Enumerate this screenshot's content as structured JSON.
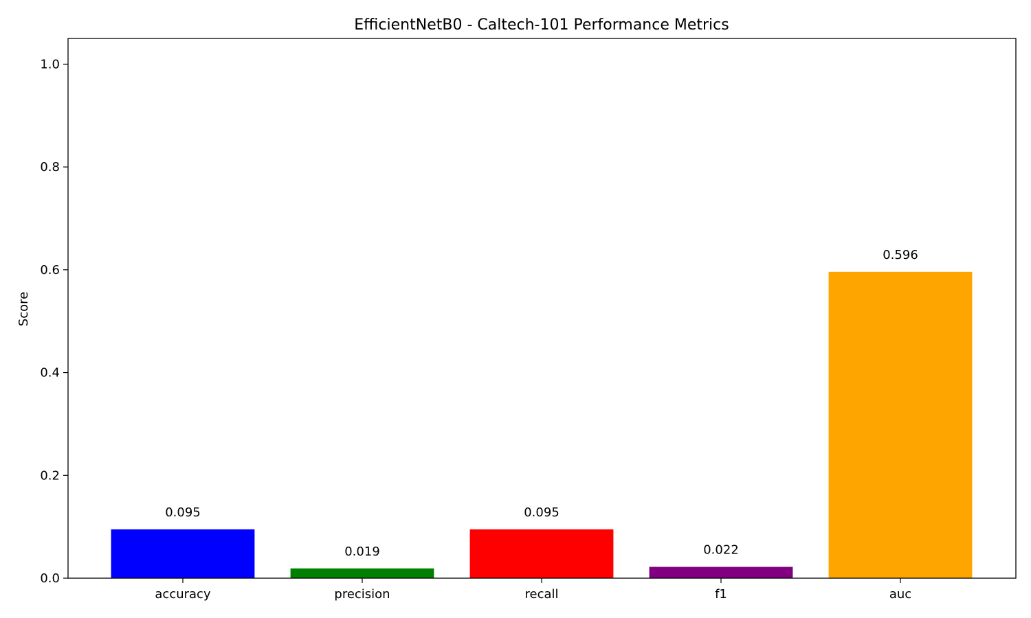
{
  "chart_data": {
    "type": "bar",
    "title": "EfficientNetB0 - Caltech-101 Performance Metrics",
    "xlabel": "",
    "ylabel": "Score",
    "ylim": [
      0,
      1.05
    ],
    "yticks": [
      0.0,
      0.2,
      0.4,
      0.6,
      0.8,
      1.0
    ],
    "ytick_labels": [
      "0.0",
      "0.2",
      "0.4",
      "0.6",
      "0.8",
      "1.0"
    ],
    "categories": [
      "accuracy",
      "precision",
      "recall",
      "f1",
      "auc"
    ],
    "values": [
      0.095,
      0.019,
      0.095,
      0.022,
      0.596
    ],
    "value_labels": [
      "0.095",
      "0.019",
      "0.095",
      "0.022",
      "0.596"
    ],
    "colors": [
      "#0000ff",
      "#008000",
      "#ff0000",
      "#800080",
      "#ffa500"
    ],
    "grid": false,
    "legend": "none"
  }
}
